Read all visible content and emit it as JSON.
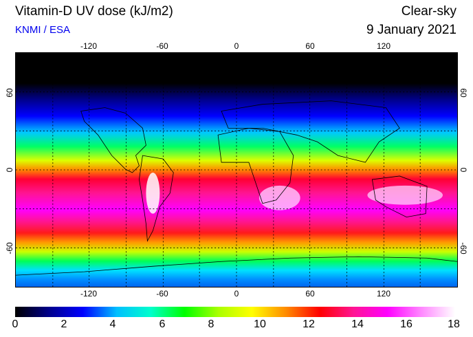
{
  "header": {
    "title": "Vitamin-D UV dose (kJ/m2)",
    "credit": "KNMI / ESA",
    "mode": "Clear-sky",
    "date": "9 January 2021"
  },
  "map": {
    "type": "global UV dose map",
    "projection": "equirectangular",
    "lon_range": [
      -180,
      180
    ],
    "lat_range": [
      -90,
      90
    ],
    "lon_ticks": [
      "-120",
      "-60",
      "0",
      "60",
      "120"
    ],
    "lat_ticks_left": [
      "60",
      "0",
      "-60"
    ],
    "lat_ticks_right": [
      "60",
      "0",
      "-60"
    ],
    "grid": true,
    "gridlines_lon": [
      -150,
      -120,
      -90,
      -60,
      -30,
      0,
      30,
      60,
      90,
      120,
      150
    ],
    "gridlines_lat": [
      60,
      30,
      0,
      -30,
      -60
    ]
  },
  "colorbar": {
    "min": 0,
    "max": 18,
    "ticks": [
      "0",
      "2",
      "4",
      "6",
      "8",
      "10",
      "12",
      "14",
      "16",
      "18"
    ],
    "colors": [
      "#000000",
      "#00008b",
      "#0000ff",
      "#00bfff",
      "#00ffcc",
      "#00ff00",
      "#aaff00",
      "#ffff00",
      "#ff8c00",
      "#ff0000",
      "#ff1493",
      "#ff00ff",
      "#ff88ff",
      "#ffffff"
    ]
  }
}
